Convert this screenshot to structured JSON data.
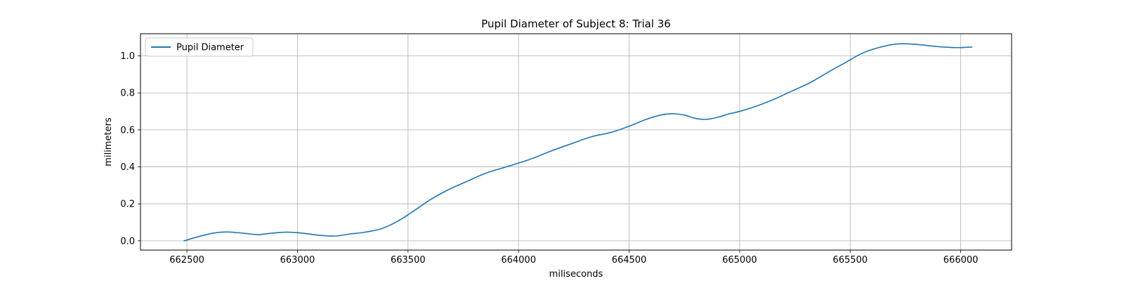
{
  "chart_data": {
    "type": "line",
    "title": "Pupil Diameter of Subject 8: Trial 36",
    "xlabel": "miliseconds",
    "ylabel": "milimeters",
    "xlim": [
      662290,
      666230
    ],
    "ylim": [
      -0.05,
      1.12
    ],
    "x_ticks": [
      662500,
      663000,
      663500,
      664000,
      664500,
      665000,
      665500,
      666000
    ],
    "x_tick_labels": [
      "662500",
      "663000",
      "663500",
      "664000",
      "664500",
      "665000",
      "665500",
      "666000"
    ],
    "y_ticks": [
      0.0,
      0.2,
      0.4,
      0.6,
      0.8,
      1.0
    ],
    "y_tick_labels": [
      "0.0",
      "0.2",
      "0.4",
      "0.6",
      "0.8",
      "1.0"
    ],
    "grid": true,
    "legend_position": "upper-left",
    "series_color": "#1f77b4",
    "series": [
      {
        "name": "Pupil Diameter",
        "x": [
          662487,
          662550,
          662620,
          662680,
          662750,
          662820,
          662880,
          662950,
          663020,
          663100,
          663170,
          663230,
          663300,
          663380,
          663450,
          663530,
          663600,
          663680,
          663760,
          663850,
          663950,
          664050,
          664150,
          664250,
          664330,
          664420,
          664500,
          664580,
          664650,
          664700,
          664750,
          664800,
          664850,
          664900,
          664950,
          665000,
          665080,
          665160,
          665240,
          665320,
          665400,
          665480,
          665550,
          665620,
          665700,
          665760,
          665820,
          665900,
          665980,
          666050
        ],
        "y": [
          0.0,
          0.022,
          0.042,
          0.048,
          0.042,
          0.034,
          0.041,
          0.047,
          0.042,
          0.03,
          0.026,
          0.036,
          0.046,
          0.066,
          0.104,
          0.165,
          0.222,
          0.275,
          0.318,
          0.365,
          0.402,
          0.44,
          0.487,
          0.53,
          0.563,
          0.587,
          0.62,
          0.658,
          0.682,
          0.687,
          0.68,
          0.662,
          0.657,
          0.668,
          0.686,
          0.7,
          0.73,
          0.768,
          0.812,
          0.856,
          0.912,
          0.965,
          1.012,
          1.042,
          1.063,
          1.065,
          1.06,
          1.05,
          1.045,
          1.048
        ]
      }
    ]
  }
}
